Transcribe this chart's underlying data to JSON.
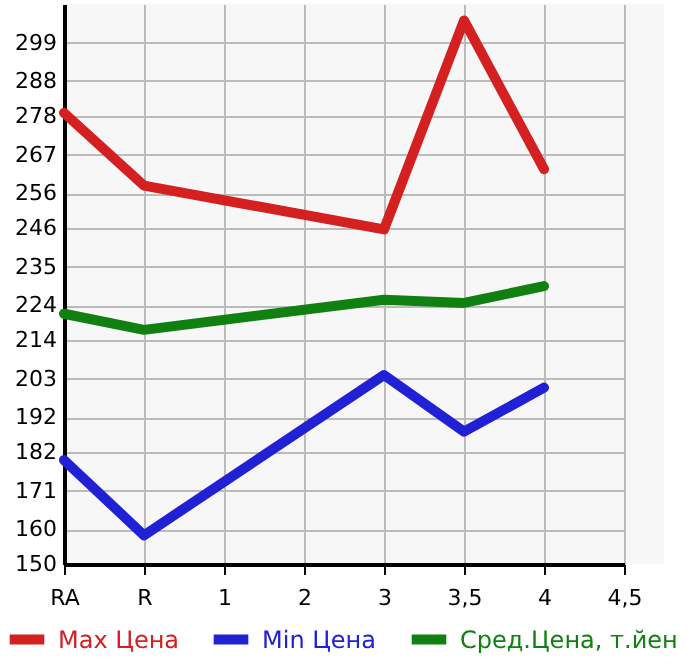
{
  "chart_data": {
    "type": "line",
    "categories": [
      "RA",
      "R",
      "1",
      "2",
      "3",
      "3,5",
      "4",
      "4,5"
    ],
    "series": [
      {
        "name": "Max Цена",
        "color": "#d42020",
        "values": [
          278.9,
          258.1,
          null,
          null,
          245.6,
          305.3,
          262.8,
          null
        ]
      },
      {
        "name": "Min Цена",
        "color": "#2020d4",
        "values": [
          179.7,
          158.2,
          null,
          null,
          204,
          187.8,
          200.4,
          null
        ]
      },
      {
        "name": "Сред.Цена, т.йен",
        "color": "#108010",
        "values": [
          221.5,
          216.9,
          null,
          null,
          225.5,
          224.6,
          229.4,
          null
        ]
      }
    ],
    "ylim": [
      150,
      310
    ],
    "yticks": [
      150,
      160,
      171,
      182,
      192,
      203,
      214,
      224,
      235,
      246,
      256,
      267,
      278,
      288,
      299
    ],
    "grid": true,
    "legend": "bottom",
    "marker": "none",
    "line_style": "solid"
  }
}
